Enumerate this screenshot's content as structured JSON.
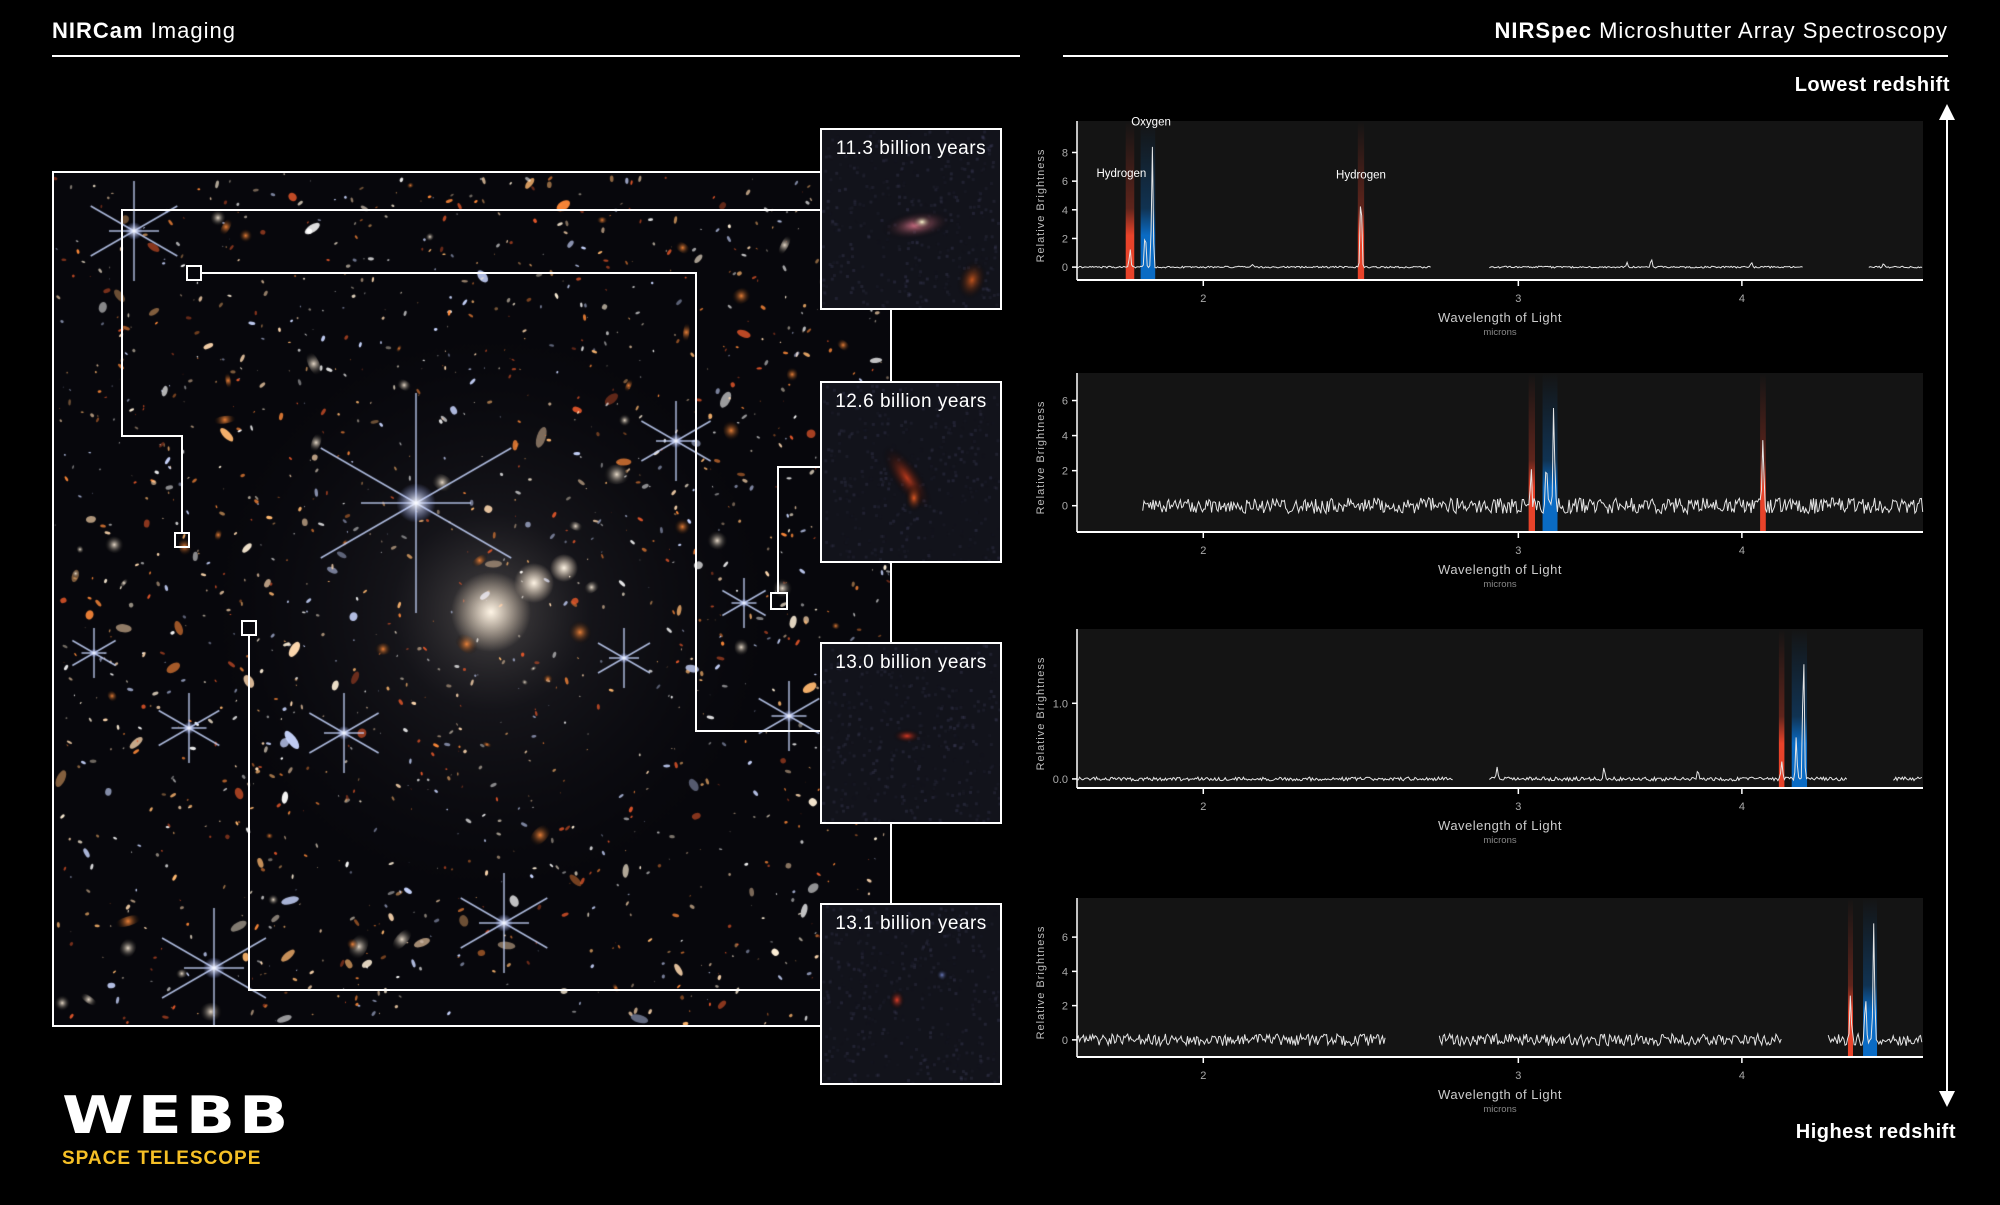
{
  "headers": {
    "left_bold": "NIRCam",
    "left_rest": " Imaging",
    "right_bold": "NIRSpec",
    "right_rest": " Microshutter Array Spectroscopy"
  },
  "redshift": {
    "top": "Lowest redshift",
    "bottom": "Highest redshift"
  },
  "insets": [
    {
      "label": "11.3 billion years"
    },
    {
      "label": "12.6 billion years"
    },
    {
      "label": "13.0 billion years"
    },
    {
      "label": "13.1 billion years"
    }
  ],
  "logo": {
    "title": "WEBB",
    "subtitle": "SPACE TELESCOPE"
  },
  "colors": {
    "hydrogen": "#e8432a",
    "oxygen": "#0a6bc4",
    "logo_accent": "#f6c026",
    "plot_bg": "#141414"
  },
  "chart_data": [
    {
      "type": "line",
      "xscale": "log",
      "xlim": [
        1.7,
        5.05
      ],
      "ylim": [
        -0.9,
        9.5
      ],
      "xticks": [
        2,
        3,
        4
      ],
      "yticks": [
        0,
        2,
        4,
        6,
        8
      ],
      "ytick_labels": [
        "0",
        "2",
        "4",
        "6",
        "8"
      ],
      "xlabel": "Wavelength of Light",
      "xunit": "microns",
      "ylabel": "Relative Brightness",
      "noise": 0.06,
      "segments": [
        [
          1.7,
          2.68
        ],
        [
          2.89,
          4.33
        ],
        [
          4.71,
          5.05
        ]
      ],
      "peaks": [
        {
          "x": 1.82,
          "y": 1.3,
          "element": "hydrogen"
        },
        {
          "x": 1.856,
          "y": 2.6,
          "element": "oxygen"
        },
        {
          "x": 1.873,
          "y": 8.5,
          "element": "oxygen"
        },
        {
          "x": 2.45,
          "y": 5.6,
          "element": "hydrogen"
        },
        {
          "x": 2.13,
          "y": 0.25,
          "element": "none"
        },
        {
          "x": 3.45,
          "y": 0.3,
          "element": "none"
        },
        {
          "x": 3.56,
          "y": 0.6,
          "element": "none"
        },
        {
          "x": 4.05,
          "y": 0.4,
          "element": "none"
        },
        {
          "x": 4.8,
          "y": 0.2,
          "element": "none"
        }
      ],
      "bands": [
        {
          "element": "hydrogen",
          "x_range": [
            1.81,
            1.83
          ]
        },
        {
          "element": "oxygen",
          "x_range": [
            1.845,
            1.88
          ]
        },
        {
          "element": "hydrogen",
          "x_range": [
            2.44,
            2.46
          ]
        }
      ],
      "annotations": [
        {
          "text": "Hydrogen",
          "x": 1.8,
          "y": 6.3
        },
        {
          "text": "Oxygen",
          "x": 1.87,
          "y": 9.9
        },
        {
          "text": "Hydrogen",
          "x": 2.45,
          "y": 6.2
        }
      ]
    },
    {
      "type": "line",
      "xscale": "log",
      "xlim": [
        1.7,
        5.05
      ],
      "ylim": [
        -1.5,
        7
      ],
      "xticks": [
        2,
        3,
        4
      ],
      "yticks": [
        0,
        2,
        4,
        6
      ],
      "ytick_labels": [
        "0",
        "2",
        "4",
        "6"
      ],
      "xlabel": "Wavelength of Light",
      "xunit": "microns",
      "ylabel": "Relative Brightness",
      "noise": 0.45,
      "segments": [
        [
          1.85,
          5.05
        ]
      ],
      "peaks": [
        {
          "x": 3.05,
          "y": 1.8,
          "element": "hydrogen"
        },
        {
          "x": 3.11,
          "y": 2.2,
          "element": "oxygen"
        },
        {
          "x": 3.14,
          "y": 6.2,
          "element": "oxygen"
        },
        {
          "x": 4.11,
          "y": 4.0,
          "element": "hydrogen"
        }
      ],
      "bands": [
        {
          "element": "hydrogen",
          "x_range": [
            3.04,
            3.065
          ]
        },
        {
          "element": "oxygen",
          "x_range": [
            3.095,
            3.155
          ]
        },
        {
          "element": "hydrogen",
          "x_range": [
            4.095,
            4.125
          ]
        }
      ],
      "annotations": []
    },
    {
      "type": "line",
      "xscale": "log",
      "xlim": [
        1.7,
        5.05
      ],
      "ylim": [
        -0.12,
        1.85
      ],
      "xticks": [
        2,
        3,
        4
      ],
      "yticks": [
        0,
        1
      ],
      "ytick_labels": [
        "0.0",
        "1.0"
      ],
      "xlabel": "Wavelength of Light",
      "xunit": "microns",
      "ylabel": "Relative Brightness",
      "noise": 0.025,
      "segments": [
        [
          1.7,
          2.76
        ],
        [
          2.89,
          4.58
        ],
        [
          4.86,
          5.05
        ]
      ],
      "peaks": [
        {
          "x": 4.21,
          "y": 0.25,
          "element": "hydrogen"
        },
        {
          "x": 4.29,
          "y": 0.55,
          "element": "oxygen"
        },
        {
          "x": 4.33,
          "y": 1.78,
          "element": "oxygen"
        },
        {
          "x": 2.92,
          "y": 0.15,
          "element": "none"
        },
        {
          "x": 3.35,
          "y": 0.15,
          "element": "none"
        },
        {
          "x": 3.78,
          "y": 0.12,
          "element": "none"
        }
      ],
      "bands": [
        {
          "element": "hydrogen",
          "x_range": [
            4.195,
            4.225
          ]
        },
        {
          "element": "oxygen",
          "x_range": [
            4.265,
            4.35
          ]
        }
      ],
      "annotations": []
    },
    {
      "type": "line",
      "xscale": "log",
      "xlim": [
        1.7,
        5.05
      ],
      "ylim": [
        -1,
        7.7
      ],
      "xticks": [
        2,
        3,
        4
      ],
      "yticks": [
        0,
        2,
        4,
        6
      ],
      "ytick_labels": [
        "0",
        "2",
        "4",
        "6"
      ],
      "xlabel": "Wavelength of Light",
      "xunit": "microns",
      "ylabel": "Relative Brightness",
      "noise": 0.35,
      "segments": [
        [
          1.7,
          2.53
        ],
        [
          2.71,
          4.21
        ],
        [
          4.47,
          5.05
        ]
      ],
      "peaks": [
        {
          "x": 4.6,
          "y": 2.5,
          "element": "hydrogen"
        },
        {
          "x": 4.69,
          "y": 2.3,
          "element": "oxygen"
        },
        {
          "x": 4.74,
          "y": 7.0,
          "element": "oxygen"
        }
      ],
      "bands": [
        {
          "element": "hydrogen",
          "x_range": [
            4.585,
            4.615
          ]
        },
        {
          "element": "oxygen",
          "x_range": [
            4.675,
            4.76
          ]
        }
      ],
      "annotations": []
    }
  ]
}
